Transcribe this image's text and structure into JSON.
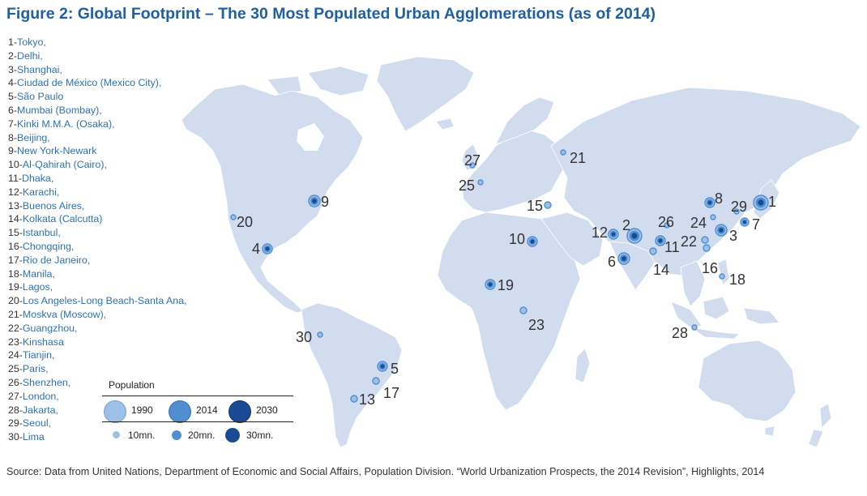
{
  "title": "Figure 2: Global Footprint – The 30 Most Populated Urban Agglomerations (as of 2014)",
  "cities": [
    {
      "num": "1-",
      "name": "Tokyo,"
    },
    {
      "num": "2-",
      "name": "Delhi,"
    },
    {
      "num": "3-",
      "name": "Shanghai,"
    },
    {
      "num": "4-",
      "name": "Ciudad de México (Mexico City),"
    },
    {
      "num": "5-",
      "name": "São Paulo"
    },
    {
      "num": "6-",
      "name": "Mumbai (Bombay),"
    },
    {
      "num": "7-",
      "name": "Kinki M.M.A. (Osaka),"
    },
    {
      "num": "8-",
      "name": "Beijing,"
    },
    {
      "num": "9-",
      "name": "New York-Newark"
    },
    {
      "num": "10-",
      "name": "Al-Qahirah (Cairo),"
    },
    {
      "num": "11-",
      "name": "Dhaka,"
    },
    {
      "num": "12-",
      "name": "Karachi,"
    },
    {
      "num": "13-",
      "name": "Buenos Aires,"
    },
    {
      "num": "14-",
      "name": "Kolkata (Calcutta)"
    },
    {
      "num": "15-",
      "name": "Istanbul,"
    },
    {
      "num": "16-",
      "name": "Chongqing,"
    },
    {
      "num": "17-",
      "name": "Rio de Janeiro,"
    },
    {
      "num": "18-",
      "name": "Manila,"
    },
    {
      "num": "19-",
      "name": "Lagos,"
    },
    {
      "num": "20-",
      "name": "Los Angeles-Long Beach-Santa Ana,"
    },
    {
      "num": "21-",
      "name": "Moskva (Moscow),"
    },
    {
      "num": "22-",
      "name": "Guangzhou,"
    },
    {
      "num": "23-",
      "name": "Kinshasa"
    },
    {
      "num": "24-",
      "name": "Tianjin,"
    },
    {
      "num": "25-",
      "name": "Paris,"
    },
    {
      "num": "26-",
      "name": "Shenzhen,"
    },
    {
      "num": "27-",
      "name": "London,"
    },
    {
      "num": "28-",
      "name": "Jakarta,"
    },
    {
      "num": "29-",
      "name": "Seoul,"
    },
    {
      "num": "30-",
      "name": "Lima"
    }
  ],
  "map_labels": [
    "1",
    "2",
    "3",
    "4",
    "5",
    "6",
    "7",
    "8",
    "9",
    "10",
    "11",
    "12",
    "13",
    "14",
    "15",
    "16",
    "17",
    "18",
    "19",
    "20",
    "21",
    "22",
    "23",
    "24",
    "25",
    "26",
    "27",
    "28",
    "29",
    "30"
  ],
  "legend": {
    "title": "Population",
    "years": [
      "1990",
      "2014",
      "2030"
    ],
    "sizes": [
      "10mn.",
      "20mn.",
      "30mn."
    ]
  },
  "colors": {
    "land": "#d2dcef",
    "y1990": "#9dc0e8",
    "y2014": "#4f8fd0",
    "y2030": "#1a4a93",
    "title": "#1f5fa5"
  },
  "source": "Source: Data from United Nations, Department of Economic and Social Affairs, Population Division. “World Urbanization Prospects, the 2014 Revision”, Highlights, 2014"
}
